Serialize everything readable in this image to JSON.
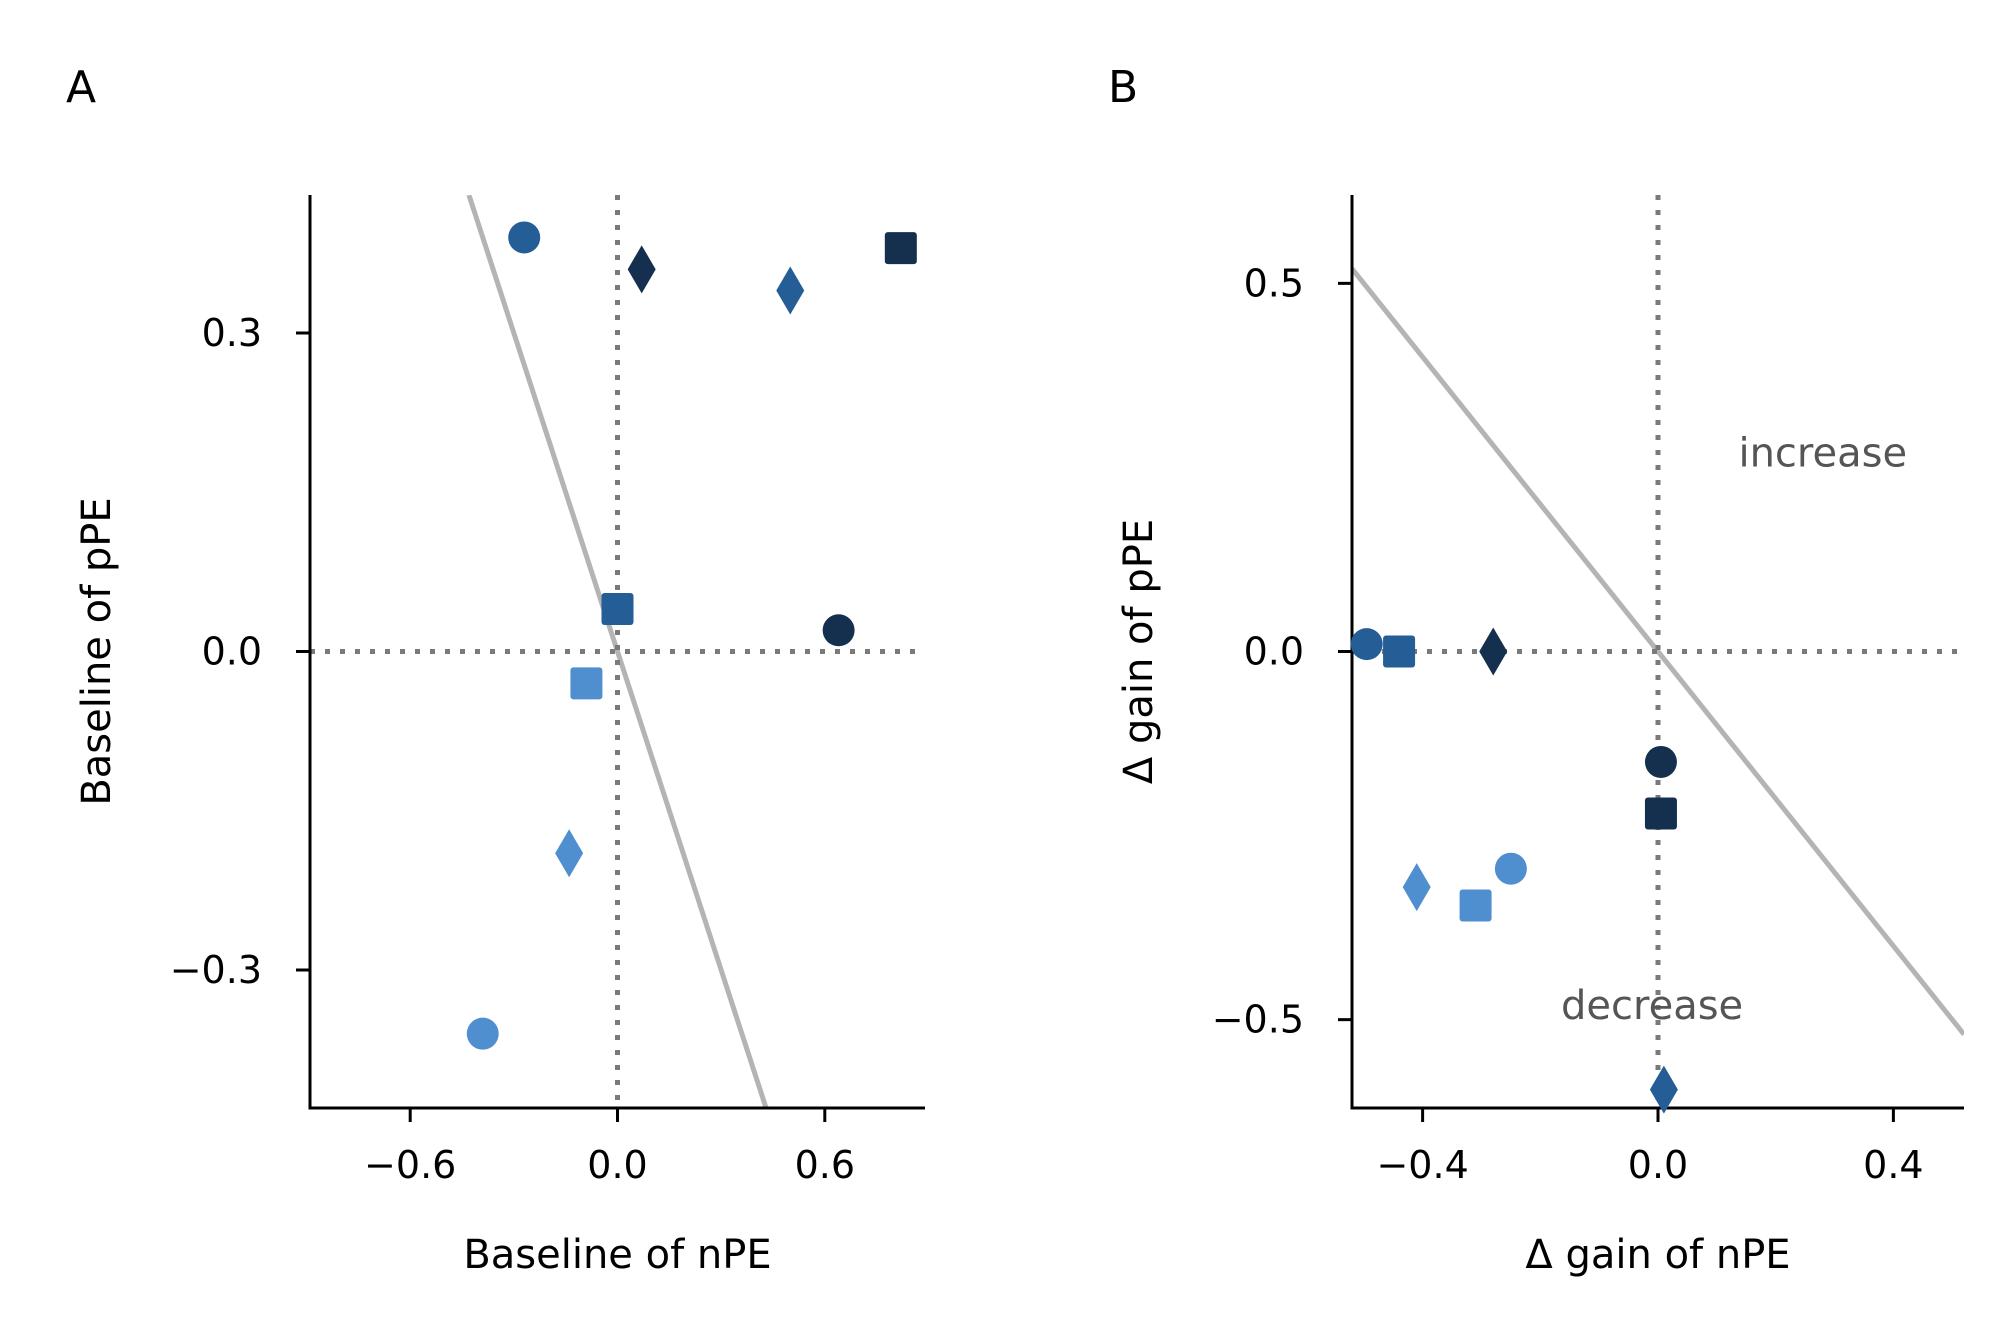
{
  "colors": {
    "light": "#4f8fd0",
    "mid": "#255d97",
    "dark": "#14304e",
    "ref_line": "#b4b4b4",
    "dotted": "#7a7a7a",
    "annotation": "#555555"
  },
  "chart_data": [
    {
      "type": "scatter",
      "panel": "A",
      "xlabel": "Baseline of nPE",
      "ylabel": "Baseline of pPE",
      "xlim": [
        -0.89,
        0.89
      ],
      "ylim": [
        -0.43,
        0.43
      ],
      "xticks": [
        -0.6,
        0.0,
        0.6
      ],
      "xtick_labels": [
        "−0.6",
        "0.0",
        "0.6"
      ],
      "yticks": [
        -0.3,
        0.0,
        0.3
      ],
      "ytick_labels": [
        "−0.3",
        "0.0",
        "0.3"
      ],
      "ref_line": [
        [
          -0.43,
          0.43
        ],
        [
          0.43,
          -0.43
        ]
      ],
      "zero_lines": true,
      "points": [
        {
          "x": -0.27,
          "y": 0.39,
          "marker": "circle",
          "color": "mid"
        },
        {
          "x": 0.07,
          "y": 0.36,
          "marker": "diamond",
          "color": "dark"
        },
        {
          "x": 0.5,
          "y": 0.34,
          "marker": "diamond",
          "color": "mid"
        },
        {
          "x": 0.82,
          "y": 0.38,
          "marker": "square",
          "color": "dark"
        },
        {
          "x": 0.0,
          "y": 0.04,
          "marker": "square",
          "color": "mid"
        },
        {
          "x": 0.64,
          "y": 0.02,
          "marker": "circle",
          "color": "dark"
        },
        {
          "x": -0.09,
          "y": -0.03,
          "marker": "square",
          "color": "light"
        },
        {
          "x": -0.14,
          "y": -0.19,
          "marker": "diamond",
          "color": "light"
        },
        {
          "x": -0.39,
          "y": -0.36,
          "marker": "circle",
          "color": "light"
        }
      ]
    },
    {
      "type": "scatter",
      "panel": "B",
      "xlabel": "Δ gain of nPE",
      "ylabel": "Δ gain of pPE",
      "xlim": [
        -0.52,
        0.52
      ],
      "ylim": [
        -0.62,
        0.62
      ],
      "xticks": [
        -0.4,
        0.0,
        0.4
      ],
      "xtick_labels": [
        "−0.4",
        "0.0",
        "0.4"
      ],
      "yticks": [
        -0.5,
        0.0,
        0.5
      ],
      "ytick_labels": [
        "−0.5",
        "0.0",
        "0.5"
      ],
      "ref_line": [
        [
          -0.52,
          0.52
        ],
        [
          0.52,
          -0.52
        ]
      ],
      "zero_lines": true,
      "annotations": [
        {
          "text": "increase",
          "x": 0.28,
          "y": 0.27
        },
        {
          "text": "decrease",
          "x": -0.01,
          "y": -0.48
        }
      ],
      "points": [
        {
          "x": -0.495,
          "y": 0.01,
          "marker": "circle",
          "color": "mid"
        },
        {
          "x": -0.44,
          "y": 0.0,
          "marker": "square",
          "color": "mid"
        },
        {
          "x": -0.28,
          "y": 0.0,
          "marker": "diamond",
          "color": "dark"
        },
        {
          "x": 0.005,
          "y": -0.15,
          "marker": "circle",
          "color": "dark"
        },
        {
          "x": 0.005,
          "y": -0.22,
          "marker": "square",
          "color": "dark"
        },
        {
          "x": -0.41,
          "y": -0.32,
          "marker": "diamond",
          "color": "light"
        },
        {
          "x": -0.25,
          "y": -0.295,
          "marker": "circle",
          "color": "light"
        },
        {
          "x": -0.31,
          "y": -0.345,
          "marker": "square",
          "color": "light"
        },
        {
          "x": 0.01,
          "y": -0.595,
          "marker": "diamond",
          "color": "mid"
        }
      ]
    }
  ]
}
